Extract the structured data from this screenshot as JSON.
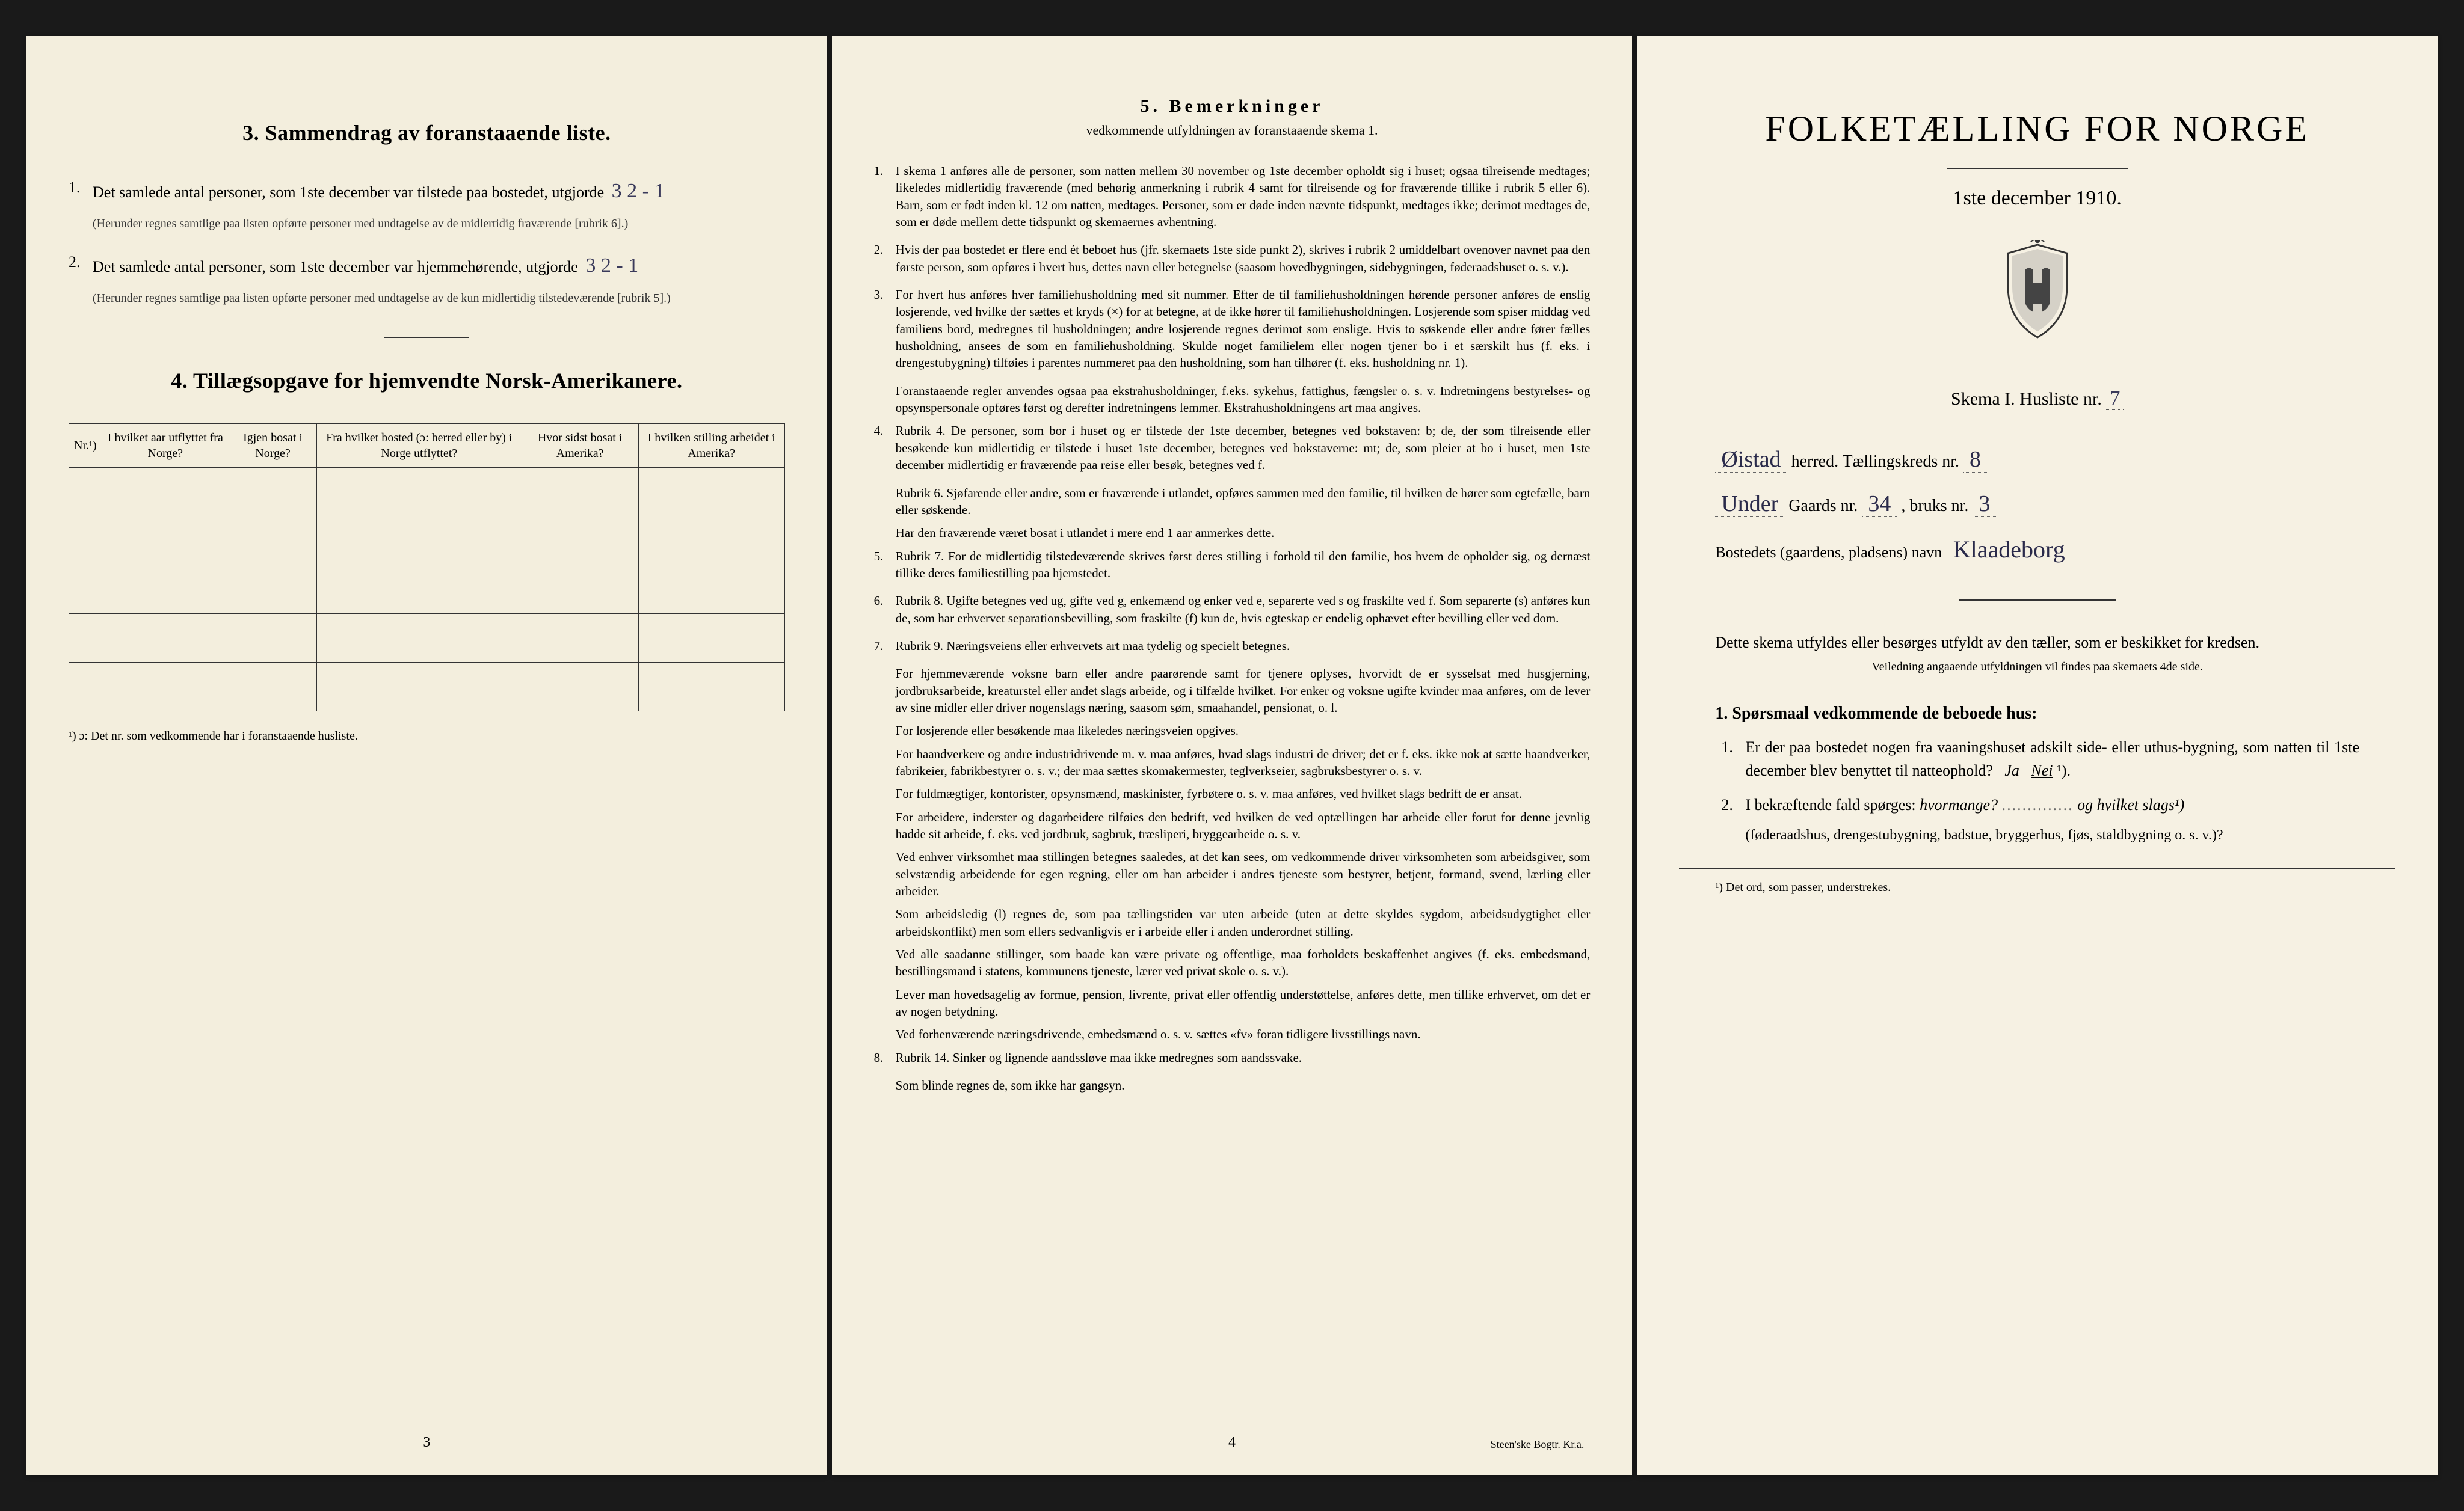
{
  "left": {
    "section3": {
      "title": "3.   Sammendrag av foranstaaende liste.",
      "item1_prefix": "Det samlede antal personer, som 1ste december var tilstede paa bostedet, utgjorde",
      "item1_hw": "3   2 - 1",
      "item1_note": "(Herunder regnes samtlige paa listen opførte personer med undtagelse av de midlertidig fraværende [rubrik 6].)",
      "item2_prefix": "Det samlede antal personer, som 1ste december var hjemmehørende, utgjorde",
      "item2_hw": "3   2 - 1",
      "item2_note": "(Herunder regnes samtlige paa listen opførte personer med undtagelse av de kun midlertidig tilstedeværende [rubrik 5].)"
    },
    "section4": {
      "title": "4.   Tillægsopgave for hjemvendte Norsk-Amerikanere.",
      "headers": {
        "c0": "Nr.¹)",
        "c1": "I hvilket aar utflyttet fra Norge?",
        "c2": "Igjen bosat i Norge?",
        "c3": "Fra hvilket bosted (ɔ: herred eller by) i Norge utflyttet?",
        "c4": "Hvor sidst bosat i Amerika?",
        "c5": "I hvilken stilling arbeidet i Amerika?"
      },
      "footnote": "¹) ɔ: Det nr. som vedkommende har i foranstaaende husliste."
    },
    "page_number": "3"
  },
  "mid": {
    "heading": "5.   Bemerkninger",
    "subheading": "vedkommende utfyldningen av foranstaaende skema 1.",
    "items": [
      {
        "n": "1.",
        "text": "I skema 1 anføres alle de personer, som natten mellem 30 november og 1ste december opholdt sig i huset; ogsaa tilreisende medtages; likeledes midlertidig fraværende (med behørig anmerkning i rubrik 4 samt for tilreisende og for fraværende tillike i rubrik 5 eller 6). Barn, som er født inden kl. 12 om natten, medtages. Personer, som er døde inden nævnte tidspunkt, medtages ikke; derimot medtages de, som er døde mellem dette tidspunkt og skemaernes avhentning."
      },
      {
        "n": "2.",
        "text": "Hvis der paa bostedet er flere end ét beboet hus (jfr. skemaets 1ste side punkt 2), skrives i rubrik 2 umiddelbart ovenover navnet paa den første person, som opføres i hvert hus, dettes navn eller betegnelse (saasom hovedbygningen, sidebygningen, føderaadshuset o. s. v.)."
      },
      {
        "n": "3.",
        "text": "For hvert hus anføres hver familiehusholdning med sit nummer. Efter de til familiehusholdningen hørende personer anføres de enslig losjerende, ved hvilke der sættes et kryds (×) for at betegne, at de ikke hører til familiehusholdningen. Losjerende som spiser middag ved familiens bord, medregnes til husholdningen; andre losjerende regnes derimot som enslige. Hvis to søskende eller andre fører fælles husholdning, ansees de som en familiehusholdning. Skulde noget familielem eller nogen tjener bo i et særskilt hus (f. eks. i drengestubygning) tilføies i parentes nummeret paa den husholdning, som han tilhører (f. eks. husholdning nr. 1)."
      },
      {
        "n": "",
        "text": "Foranstaaende regler anvendes ogsaa paa ekstrahusholdninger, f.eks. sykehus, fattighus, fængsler o. s. v. Indretningens bestyrelses- og opsynspersonale opføres først og derefter indretningens lemmer. Ekstrahusholdningens art maa angives."
      },
      {
        "n": "4.",
        "text": "Rubrik 4. De personer, som bor i huset og er tilstede der 1ste december, betegnes ved bokstaven: b; de, der som tilreisende eller besøkende kun midlertidig er tilstede i huset 1ste december, betegnes ved bokstaverne: mt; de, som pleier at bo i huset, men 1ste december midlertidig er fraværende paa reise eller besøk, betegnes ved f."
      },
      {
        "n": "",
        "text": "Rubrik 6. Sjøfarende eller andre, som er fraværende i utlandet, opføres sammen med den familie, til hvilken de hører som egtefælle, barn eller søskende."
      },
      {
        "n": "",
        "text": "Har den fraværende været bosat i utlandet i mere end 1 aar anmerkes dette."
      },
      {
        "n": "5.",
        "text": "Rubrik 7. For de midlertidig tilstedeværende skrives først deres stilling i forhold til den familie, hos hvem de opholder sig, og dernæst tillike deres familiestilling paa hjemstedet."
      },
      {
        "n": "6.",
        "text": "Rubrik 8. Ugifte betegnes ved ug, gifte ved g, enkemænd og enker ved e, separerte ved s og fraskilte ved f. Som separerte (s) anføres kun de, som har erhvervet separationsbevilling, som fraskilte (f) kun de, hvis egteskap er endelig ophævet efter bevilling eller ved dom."
      },
      {
        "n": "7.",
        "text": "Rubrik 9. Næringsveiens eller erhvervets art maa tydelig og specielt betegnes."
      },
      {
        "n": "",
        "text": "For hjemmeværende voksne barn eller andre paarørende samt for tjenere oplyses, hvorvidt de er sysselsat med husgjerning, jordbruksarbeide, kreaturstel eller andet slags arbeide, og i tilfælde hvilket. For enker og voksne ugifte kvinder maa anføres, om de lever av sine midler eller driver nogenslags næring, saasom søm, smaahandel, pensionat, o. l."
      },
      {
        "n": "",
        "text": "For losjerende eller besøkende maa likeledes næringsveien opgives."
      },
      {
        "n": "",
        "text": "For haandverkere og andre industridrivende m. v. maa anføres, hvad slags industri de driver; det er f. eks. ikke nok at sætte haandverker, fabrikeier, fabrikbestyrer o. s. v.; der maa sættes skomakermester, teglverkseier, sagbruksbestyrer o. s. v."
      },
      {
        "n": "",
        "text": "For fuldmægtiger, kontorister, opsynsmænd, maskinister, fyrbøtere o. s. v. maa anføres, ved hvilket slags bedrift de er ansat."
      },
      {
        "n": "",
        "text": "For arbeidere, inderster og dagarbeidere tilføies den bedrift, ved hvilken de ved optællingen har arbeide eller forut for denne jevnlig hadde sit arbeide, f. eks. ved jordbruk, sagbruk, træsliperi, bryggearbeide o. s. v."
      },
      {
        "n": "",
        "text": "Ved enhver virksomhet maa stillingen betegnes saaledes, at det kan sees, om vedkommende driver virksomheten som arbeidsgiver, som selvstændig arbeidende for egen regning, eller om han arbeider i andres tjeneste som bestyrer, betjent, formand, svend, lærling eller arbeider."
      },
      {
        "n": "",
        "text": "Som arbeidsledig (l) regnes de, som paa tællingstiden var uten arbeide (uten at dette skyldes sygdom, arbeidsudygtighet eller arbeidskonflikt) men som ellers sedvanligvis er i arbeide eller i anden underordnet stilling."
      },
      {
        "n": "",
        "text": "Ved alle saadanne stillinger, som baade kan være private og offentlige, maa forholdets beskaffenhet angives (f. eks. embedsmand, bestillingsmand i statens, kommunens tjeneste, lærer ved privat skole o. s. v.)."
      },
      {
        "n": "",
        "text": "Lever man hovedsagelig av formue, pension, livrente, privat eller offentlig understøttelse, anføres dette, men tillike erhvervet, om det er av nogen betydning."
      },
      {
        "n": "",
        "text": "Ved forhenværende næringsdrivende, embedsmænd o. s. v. sættes «fv» foran tidligere livsstillings navn."
      },
      {
        "n": "8.",
        "text": "Rubrik 14. Sinker og lignende aandssløve maa ikke medregnes som aandssvake."
      },
      {
        "n": "",
        "text": "Som blinde regnes de, som ikke har gangsyn."
      }
    ],
    "page_number": "4",
    "printer": "Steen'ske Bogtr.  Kr.a."
  },
  "right": {
    "title": "FOLKETÆLLING FOR NORGE",
    "date": "1ste december 1910.",
    "skema": "Skema I.  Husliste nr.",
    "skema_nr": "7",
    "herred_hw": "Øistad",
    "herred_label": "herred.  Tællingskreds nr.",
    "kreds_nr": "8",
    "gaard_prefix": "Under",
    "gaard_label": "Gaards nr.",
    "gaard_nr": "34",
    "bruk_label": ", bruks nr.",
    "bruk_nr": "3",
    "bosted_label": "Bostedets (gaardens, pladsens) navn",
    "bosted_hw": "Klaadeborg",
    "instruct": "Dette skema utfyldes eller besørges utfyldt av den tæller, som er beskikket for kredsen.",
    "instruct_small": "Veiledning angaaende utfyldningen vil findes paa skemaets 4de side.",
    "q_heading": "1. Spørsmaal vedkommende de beboede hus:",
    "q1": "Er der paa bostedet nogen fra vaaningshuset adskilt side- eller uthus-bygning, som natten til 1ste december blev benyttet til natteophold?",
    "q1_ja": "Ja",
    "q1_nei": "Nei",
    "q1_sup": "¹).",
    "q2": "I bekræftende fald spørges:",
    "q2_i1": "hvormange?",
    "q2_i2": "og hvilket slags¹)",
    "q2_sub": "(føderaadshus, drengestubygning, badstue, bryggerhus, fjøs, staldbygning o. s. v.)?",
    "footnote": "¹) Det ord, som passer, understrekes."
  },
  "colors": {
    "paper": "#f5f0e1",
    "ink": "#1a1a1a",
    "handwriting": "#3a3a5a"
  }
}
